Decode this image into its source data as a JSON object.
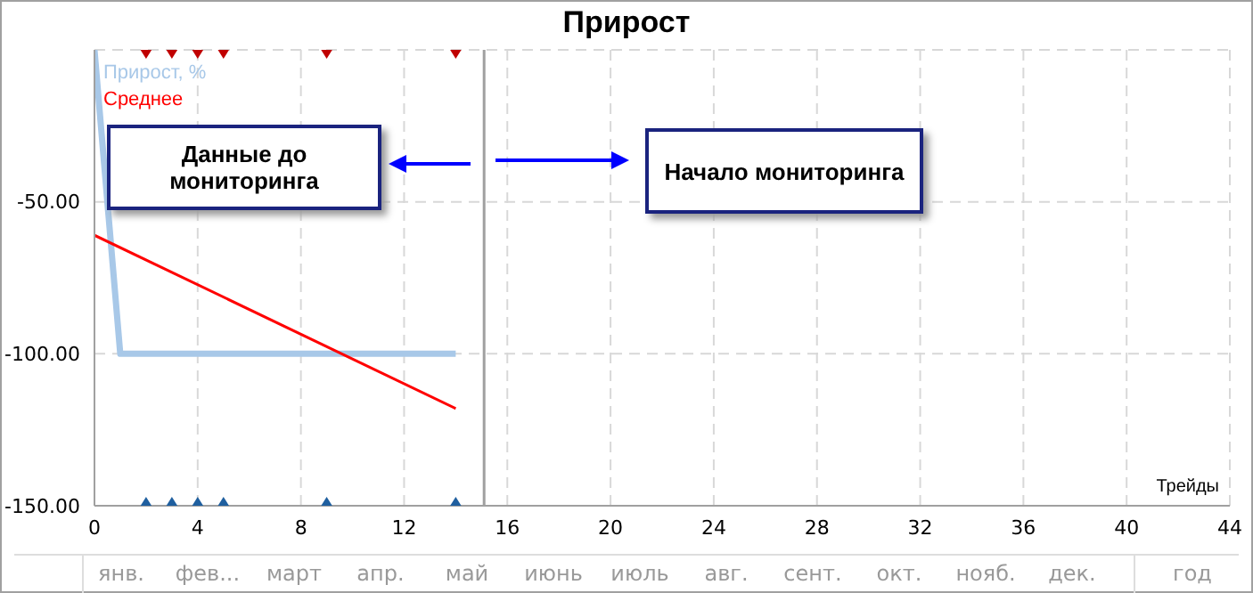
{
  "chart_data": {
    "type": "line",
    "title": "Прирост",
    "xlabel": "Трейды",
    "xlim": [
      0,
      44
    ],
    "xticks": [
      0,
      4,
      8,
      12,
      16,
      20,
      24,
      28,
      32,
      36,
      40,
      44
    ],
    "ylim": [
      -150,
      0
    ],
    "yticks": [
      {
        "value": -150,
        "label": "-150.00"
      },
      {
        "value": -100,
        "label": "-100.00"
      },
      {
        "value": -50,
        "label": "-50.00"
      }
    ],
    "grid": true,
    "legend": "top left",
    "marker": "none",
    "series": [
      {
        "name": "Прирост, %",
        "color": "#a8c8e8",
        "x": [
          0,
          1,
          14
        ],
        "values": [
          0,
          -100,
          -100
        ]
      },
      {
        "name": "Среднее",
        "color": "#ff0000",
        "x": [
          0,
          14
        ],
        "values": [
          -61,
          -118
        ]
      },
      {
        "type": "scatter",
        "marker": "triangle",
        "color": "#c00000",
        "x": [
          2,
          3,
          4,
          5,
          9,
          14
        ],
        "values": [
          0,
          0,
          0,
          0,
          0,
          0
        ]
      },
      {
        "type": "scatter",
        "marker": "triangle",
        "color": "#1f5f9f",
        "x": [
          2,
          3,
          4,
          5,
          9,
          14
        ],
        "values": [
          -150,
          -150,
          -150,
          -150,
          -150,
          -150
        ]
      }
    ],
    "ref_lines": [
      {
        "axis": "x",
        "value": 15.1,
        "color": "#a0a0a0"
      }
    ],
    "annotations": [
      "Данные до мониторинга",
      "Начало мониторинга",
      "янв.",
      "фев...",
      "март",
      "апр.",
      "май",
      "июнь",
      "июль",
      "авг.",
      "сент.",
      "окт.",
      "нояб.",
      "дек.",
      "год"
    ]
  }
}
